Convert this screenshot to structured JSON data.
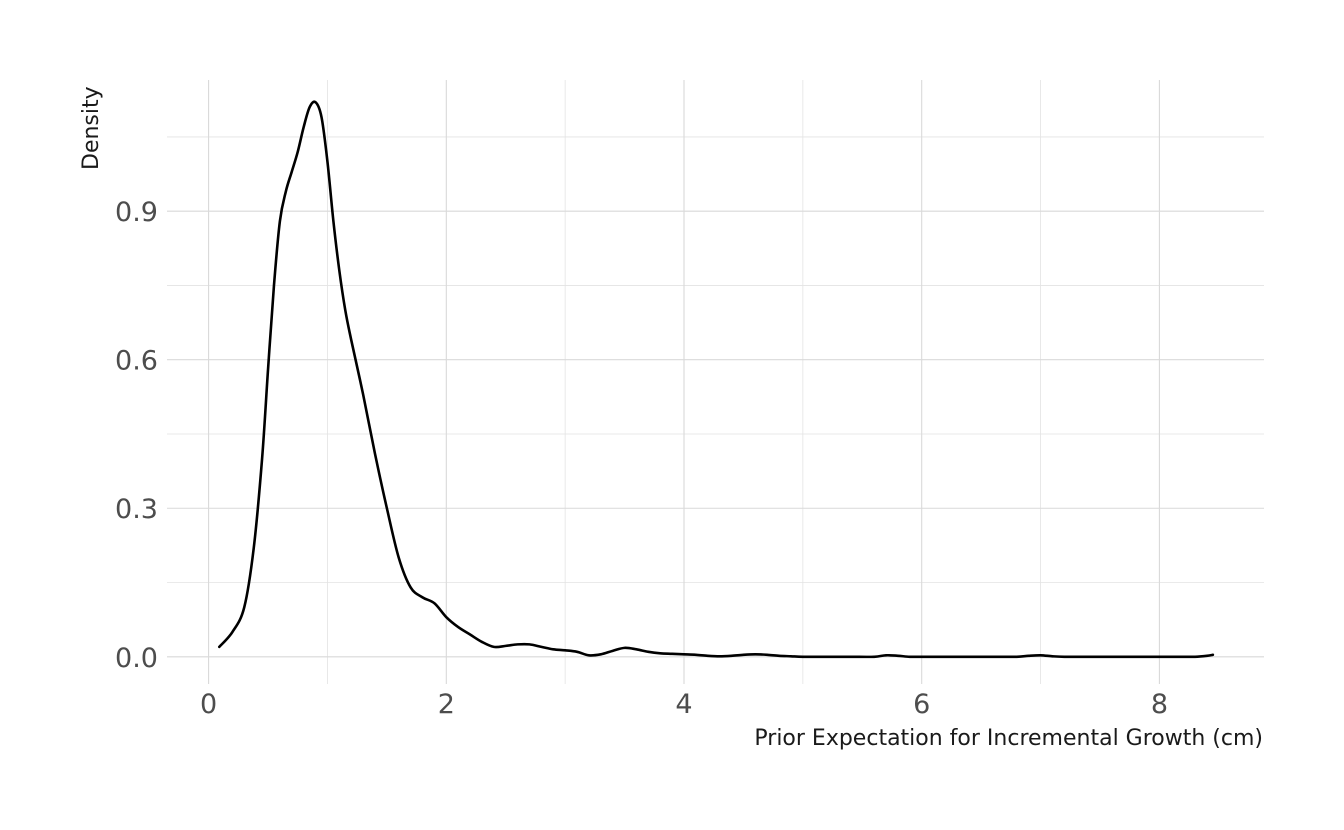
{
  "chart_data": {
    "type": "line",
    "title": "",
    "xlabel": "Prior Expectation for Incremental Growth (cm)",
    "ylabel": "Density",
    "xlim": [
      -0.35,
      8.88
    ],
    "ylim": [
      -0.055,
      1.165
    ],
    "x_ticks": [
      0,
      2,
      4,
      6,
      8
    ],
    "x_tick_labels": [
      "0",
      "2",
      "4",
      "6",
      "8"
    ],
    "y_ticks": [
      0.0,
      0.3,
      0.6,
      0.9
    ],
    "y_tick_labels": [
      "0.0",
      "0.3",
      "0.6",
      "0.9"
    ],
    "x_minor": [
      1,
      3,
      5,
      7
    ],
    "y_minor": [
      0.15,
      0.45,
      0.75,
      1.05
    ],
    "grid": true,
    "legend": "none",
    "line_color": "#000000",
    "series": [
      {
        "x": [
          0.09,
          0.2,
          0.3,
          0.38,
          0.45,
          0.5,
          0.55,
          0.6,
          0.65,
          0.7,
          0.75,
          0.8,
          0.85,
          0.9,
          0.95,
          1.0,
          1.05,
          1.1,
          1.15,
          1.2,
          1.3,
          1.4,
          1.5,
          1.6,
          1.7,
          1.8,
          1.9,
          2.0,
          2.1,
          2.2,
          2.3,
          2.4,
          2.5,
          2.6,
          2.7,
          2.8,
          2.9,
          3.0,
          3.1,
          3.2,
          3.3,
          3.4,
          3.5,
          3.6,
          3.7,
          3.8,
          3.9,
          4.0,
          4.1,
          4.2,
          4.3,
          4.4,
          4.5,
          4.6,
          4.7,
          4.8,
          4.9,
          5.0,
          5.2,
          5.4,
          5.6,
          5.7,
          5.8,
          5.9,
          6.0,
          6.2,
          6.4,
          6.6,
          6.8,
          6.9,
          7.0,
          7.1,
          7.2,
          7.4,
          7.6,
          7.8,
          8.0,
          8.2,
          8.3,
          8.4,
          8.45
        ],
        "y": [
          0.02,
          0.05,
          0.1,
          0.22,
          0.4,
          0.58,
          0.75,
          0.88,
          0.94,
          0.98,
          1.02,
          1.07,
          1.11,
          1.12,
          1.09,
          1.0,
          0.88,
          0.78,
          0.7,
          0.64,
          0.53,
          0.41,
          0.3,
          0.2,
          0.14,
          0.12,
          0.108,
          0.08,
          0.06,
          0.045,
          0.03,
          0.02,
          0.022,
          0.025,
          0.025,
          0.02,
          0.015,
          0.013,
          0.01,
          0.003,
          0.005,
          0.012,
          0.018,
          0.015,
          0.01,
          0.007,
          0.006,
          0.005,
          0.004,
          0.002,
          0.001,
          0.002,
          0.004,
          0.005,
          0.004,
          0.002,
          0.001,
          0.0,
          0.0,
          0.0,
          0.0,
          0.003,
          0.002,
          0.0,
          0.0,
          0.0,
          0.0,
          0.0,
          0.0,
          0.002,
          0.003,
          0.001,
          0.0,
          0.0,
          0.0,
          0.0,
          0.0,
          0.0,
          0.0,
          0.002,
          0.004
        ]
      }
    ]
  }
}
